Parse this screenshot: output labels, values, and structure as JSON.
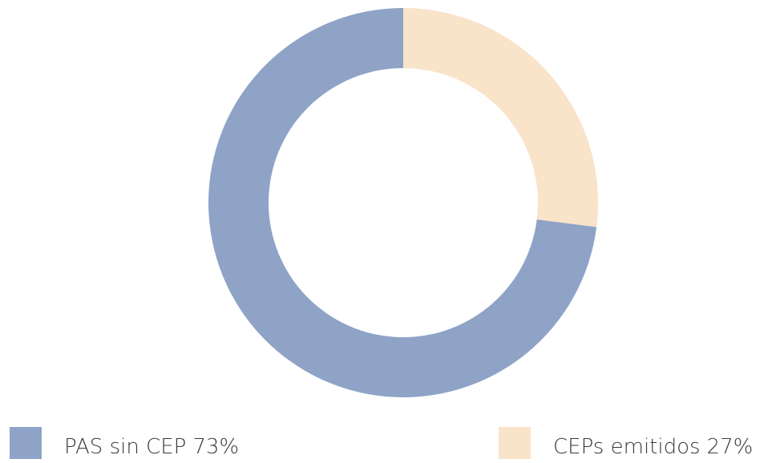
{
  "chart_data": {
    "type": "donut",
    "categories": [
      "PAS sin CEP",
      "CEPs emitidos"
    ],
    "values": [
      73,
      27
    ],
    "value_labels": [
      "73%",
      "27%"
    ],
    "colors": [
      "#8fa3c7",
      "#f9e3c9"
    ]
  }
}
